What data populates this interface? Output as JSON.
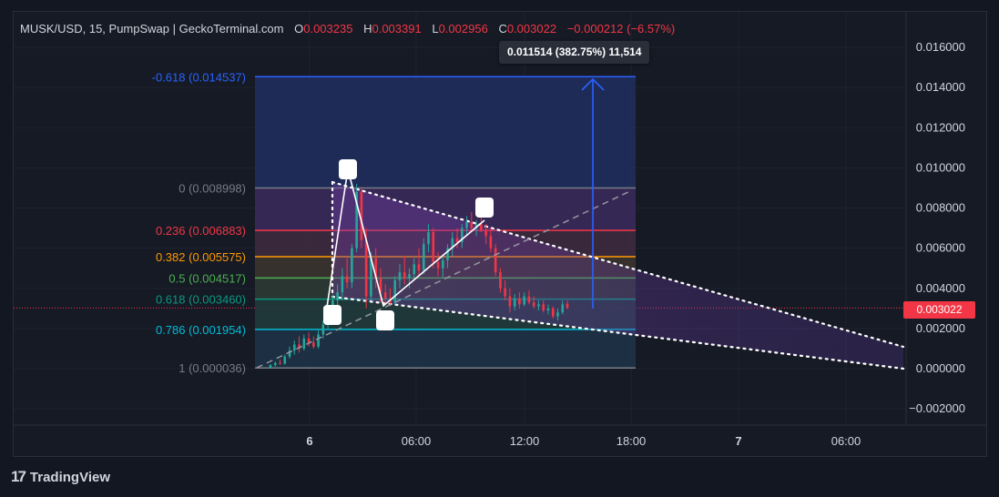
{
  "header": {
    "symbol": "MUSK/USD, 15, PumpSwap | GeckoTerminal.com",
    "open_label": "O",
    "open": "0.003235",
    "high_label": "H",
    "high": "0.003391",
    "low_label": "L",
    "low": "0.002956",
    "close_label": "C",
    "close": "0.003022",
    "change": "−0.000212 (−6.57%)"
  },
  "measure_tooltip": "0.011514 (382.75%) 11,514",
  "last_price_tag": "0.003022",
  "branding": {
    "name": "TradingView"
  },
  "colors": {
    "up": "#26a69a",
    "down": "#f23645",
    "background": "#161a25"
  },
  "chart_data": {
    "type": "candlestick",
    "y_axis": {
      "min": -0.003,
      "max": 0.017,
      "ticks": [
        "0.016000",
        "0.014000",
        "0.012000",
        "0.010000",
        "0.008000",
        "0.006000",
        "0.004000",
        "0.002000",
        "0.000000",
        "−0.002000"
      ],
      "tick_values": [
        0.016,
        0.014,
        0.012,
        0.01,
        0.008,
        0.006,
        0.004,
        0.002,
        0.0,
        -0.002
      ]
    },
    "x_axis": {
      "ticks": [
        "6",
        "06:00",
        "12:00",
        "18:00",
        "7",
        "06:00"
      ]
    },
    "fib_levels": [
      {
        "label": "-0.618 (0.014537)",
        "price": 0.014537,
        "color": "#2962ff"
      },
      {
        "label": "0 (0.008998)",
        "price": 0.008998,
        "color": "#787b86"
      },
      {
        "label": "0.236 (0.006883)",
        "price": 0.006883,
        "color": "#f23645"
      },
      {
        "label": "0.382 (0.005575)",
        "price": 0.005575,
        "color": "#ff9800"
      },
      {
        "label": "0.5 (0.004517)",
        "price": 0.004517,
        "color": "#4caf50"
      },
      {
        "label": "0.618 (0.003460)",
        "price": 0.00346,
        "color": "#089981"
      },
      {
        "label": "0.786 (0.001954)",
        "price": 0.001954,
        "color": "#00bcd4"
      },
      {
        "label": "1 (0.000036)",
        "price": 3.6e-05,
        "color": "#787b86"
      }
    ],
    "last_price": 0.003022,
    "candles": [
      [
        4e-05,
        0.00022,
        0.0,
        0.00018
      ],
      [
        0.00018,
        0.00035,
        0.0001,
        0.00028
      ],
      [
        0.00028,
        0.00045,
        0.0002,
        0.00025
      ],
      [
        0.00025,
        0.0007,
        0.0002,
        0.0006
      ],
      [
        0.0006,
        0.0011,
        0.0005,
        0.0009
      ],
      [
        0.0009,
        0.0014,
        0.0007,
        0.0012
      ],
      [
        0.0012,
        0.0016,
        0.0008,
        0.001
      ],
      [
        0.001,
        0.0017,
        0.0009,
        0.0015
      ],
      [
        0.0015,
        0.0018,
        0.0011,
        0.0013
      ],
      [
        0.0013,
        0.0016,
        0.001,
        0.0011
      ],
      [
        0.0011,
        0.0019,
        0.001,
        0.0017
      ],
      [
        0.0017,
        0.0024,
        0.0015,
        0.0022
      ],
      [
        0.0022,
        0.003,
        0.002,
        0.0027
      ],
      [
        0.0027,
        0.0037,
        0.0025,
        0.0034
      ],
      [
        0.0034,
        0.0042,
        0.003,
        0.0038
      ],
      [
        0.0038,
        0.005,
        0.0034,
        0.0046
      ],
      [
        0.0046,
        0.0055,
        0.004,
        0.0043
      ],
      [
        0.0043,
        0.0062,
        0.004,
        0.006
      ],
      [
        0.006,
        0.0092,
        0.0058,
        0.0088
      ],
      [
        0.0088,
        0.009,
        0.006,
        0.0064
      ],
      [
        0.0064,
        0.007,
        0.003,
        0.0036
      ],
      [
        0.0036,
        0.0058,
        0.0034,
        0.0055
      ],
      [
        0.0055,
        0.006,
        0.004,
        0.0045
      ],
      [
        0.0045,
        0.005,
        0.0033,
        0.0038
      ],
      [
        0.0038,
        0.0042,
        0.0032,
        0.0035
      ],
      [
        0.0035,
        0.004,
        0.0031,
        0.0033
      ],
      [
        0.0033,
        0.0046,
        0.0032,
        0.0044
      ],
      [
        0.0044,
        0.0052,
        0.004,
        0.0048
      ],
      [
        0.0048,
        0.0056,
        0.0042,
        0.0045
      ],
      [
        0.0045,
        0.005,
        0.004,
        0.0047
      ],
      [
        0.0047,
        0.0055,
        0.0044,
        0.0052
      ],
      [
        0.0052,
        0.006,
        0.0046,
        0.0049
      ],
      [
        0.0049,
        0.0065,
        0.0047,
        0.0062
      ],
      [
        0.0062,
        0.0072,
        0.0058,
        0.0068
      ],
      [
        0.0068,
        0.007,
        0.005,
        0.0053
      ],
      [
        0.0053,
        0.0058,
        0.0046,
        0.005
      ],
      [
        0.005,
        0.0056,
        0.0045,
        0.0054
      ],
      [
        0.0054,
        0.0062,
        0.005,
        0.006
      ],
      [
        0.006,
        0.0068,
        0.0056,
        0.0065
      ],
      [
        0.0065,
        0.007,
        0.006,
        0.0063
      ],
      [
        0.0063,
        0.0072,
        0.006,
        0.007
      ],
      [
        0.007,
        0.0076,
        0.0066,
        0.0073
      ],
      [
        0.0073,
        0.0078,
        0.0068,
        0.007
      ],
      [
        0.007,
        0.0074,
        0.0066,
        0.0072
      ],
      [
        0.0072,
        0.008,
        0.0068,
        0.0069
      ],
      [
        0.0069,
        0.0072,
        0.0062,
        0.0066
      ],
      [
        0.0066,
        0.007,
        0.0058,
        0.006
      ],
      [
        0.006,
        0.0062,
        0.0046,
        0.0048
      ],
      [
        0.0048,
        0.005,
        0.0038,
        0.004
      ],
      [
        0.004,
        0.0044,
        0.0034,
        0.0036
      ],
      [
        0.0036,
        0.004,
        0.0028,
        0.0031
      ],
      [
        0.0031,
        0.0037,
        0.0029,
        0.0035
      ],
      [
        0.0035,
        0.0038,
        0.003,
        0.0032
      ],
      [
        0.0032,
        0.0038,
        0.0031,
        0.0036
      ],
      [
        0.0036,
        0.0039,
        0.0032,
        0.0033
      ],
      [
        0.0033,
        0.0036,
        0.003,
        0.0031
      ],
      [
        0.0031,
        0.0034,
        0.0029,
        0.0032
      ],
      [
        0.0032,
        0.0034,
        0.0028,
        0.0029
      ],
      [
        0.0029,
        0.0032,
        0.0027,
        0.003
      ],
      [
        0.003,
        0.0031,
        0.0025,
        0.0026
      ],
      [
        0.0026,
        0.003,
        0.0024,
        0.0028
      ],
      [
        0.0028,
        0.0034,
        0.0027,
        0.0032
      ],
      [
        0.003235,
        0.003391,
        0.002956,
        0.003022
      ]
    ]
  }
}
